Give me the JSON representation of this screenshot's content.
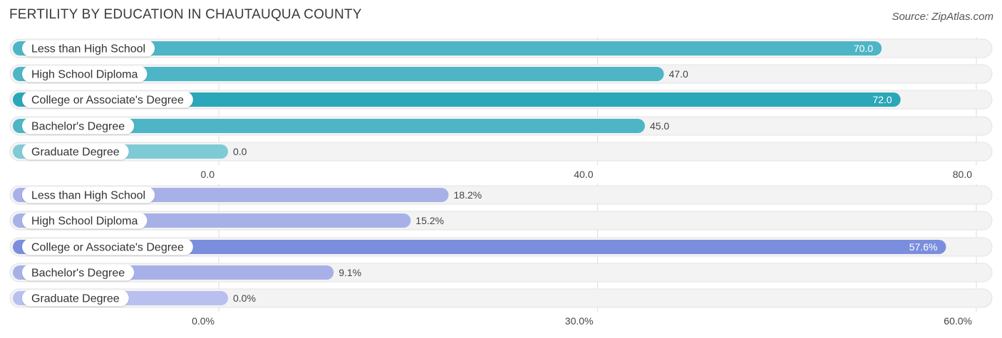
{
  "header": {
    "title": "FERTILITY BY EDUCATION IN CHAUTAUQUA COUNTY",
    "source": "Source: ZipAtlas.com"
  },
  "colors": {
    "chart1_strong": "#2aa7b9",
    "chart1_normal": "#4db5c6",
    "chart1_weak": "#7fcbd5",
    "chart2_strong": "#7b8ede",
    "chart2_normal": "#a7b1e8",
    "chart2_weak": "#b8c0ef",
    "track": "#eeeeee"
  },
  "chart_data": [
    {
      "type": "bar",
      "orientation": "horizontal",
      "title": "",
      "categories": [
        "Less than High School",
        "High School Diploma",
        "College or Associate's Degree",
        "Bachelor's Degree",
        "Graduate Degree"
      ],
      "values": [
        70.0,
        47.0,
        72.0,
        45.0,
        0.0
      ],
      "value_labels": [
        "70.0",
        "47.0",
        "72.0",
        "45.0",
        "0.0"
      ],
      "tick_labels": [
        "0.0",
        "40.0",
        "80.0"
      ],
      "xlim": [
        0,
        80
      ],
      "grid": true
    },
    {
      "type": "bar",
      "orientation": "horizontal",
      "title": "",
      "categories": [
        "Less than High School",
        "High School Diploma",
        "College or Associate's Degree",
        "Bachelor's Degree",
        "Graduate Degree"
      ],
      "values": [
        18.2,
        15.2,
        57.6,
        9.1,
        0.0
      ],
      "value_labels": [
        "18.2%",
        "15.2%",
        "57.6%",
        "9.1%",
        "0.0%"
      ],
      "tick_labels": [
        "0.0%",
        "30.0%",
        "60.0%"
      ],
      "xlim": [
        0,
        60
      ],
      "grid": true
    }
  ]
}
